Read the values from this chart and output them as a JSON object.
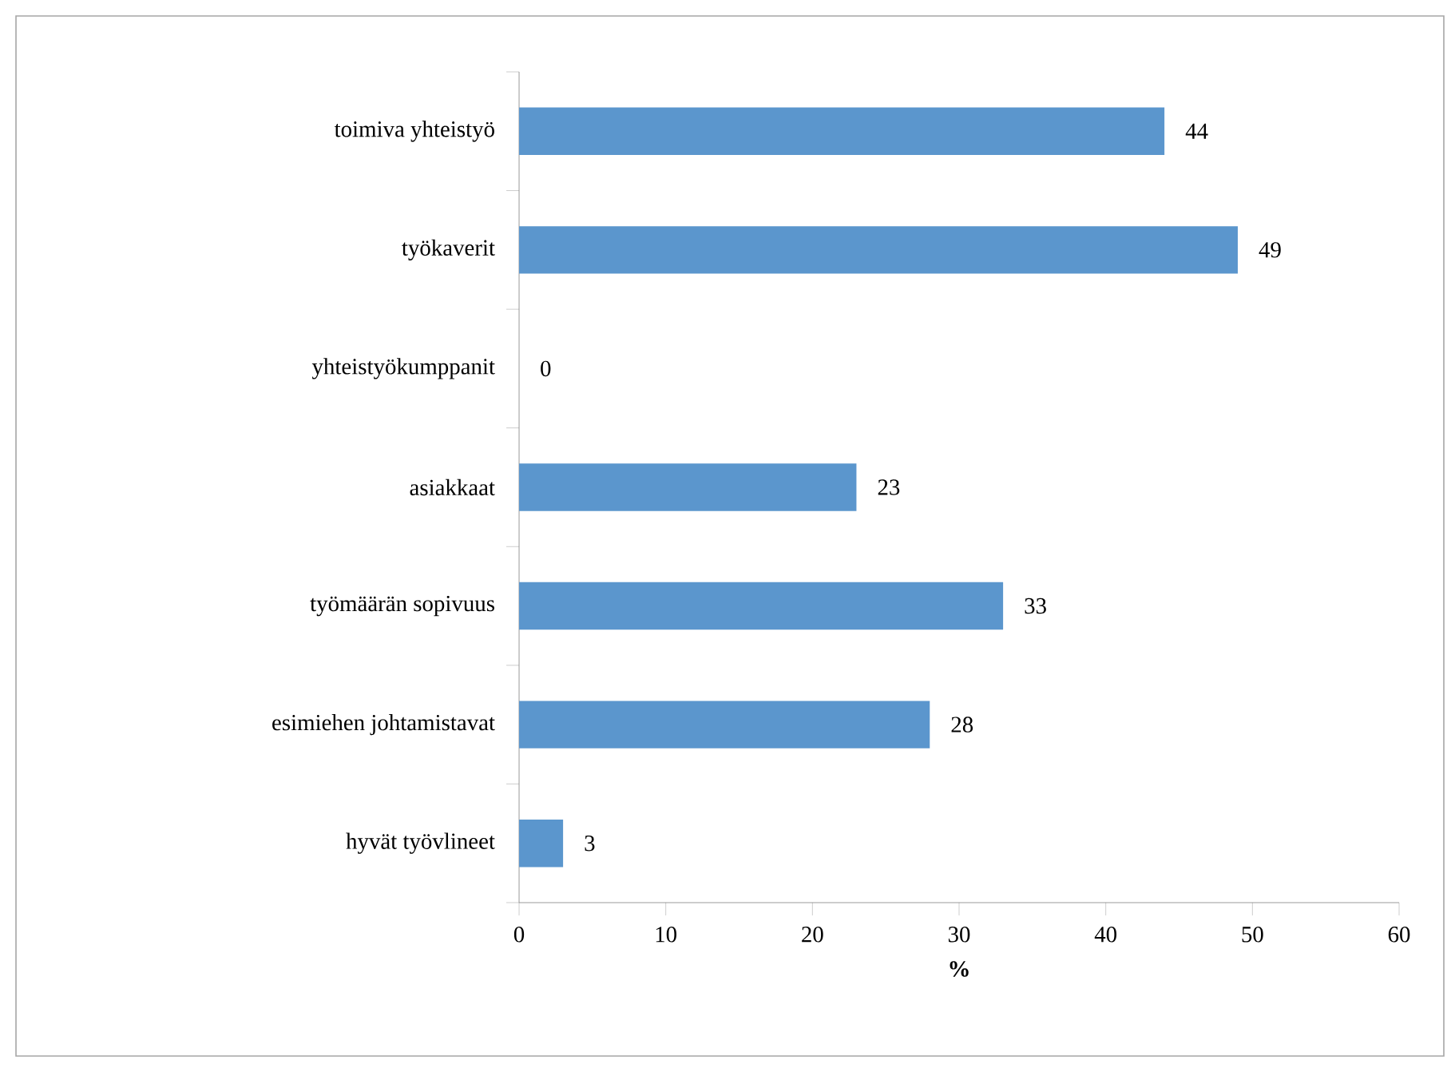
{
  "chart_data": {
    "type": "bar",
    "orientation": "horizontal",
    "xlabel": "%",
    "categories": [
      "toimiva yhteistyö",
      "työkaverit",
      "yhteistyökumppanit",
      "asiakkaat",
      "työmäärän sopivuus",
      "esimiehen johtamistavat",
      "hyvät työvlineet"
    ],
    "values": [
      44,
      49,
      0,
      23,
      33,
      28,
      3
    ],
    "color": "#5b96cd",
    "xlim": [
      0,
      60
    ],
    "xticks": [
      0,
      10,
      20,
      30,
      40,
      50,
      60
    ],
    "data_labels": true
  }
}
